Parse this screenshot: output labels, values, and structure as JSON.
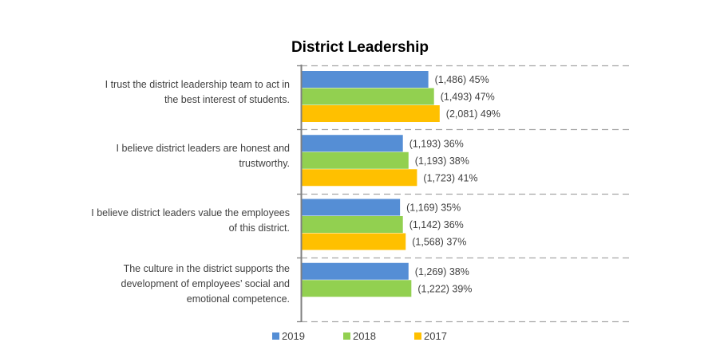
{
  "chart_data": {
    "type": "bar",
    "orientation": "horizontal",
    "title": "District Leadership",
    "xlabel": "",
    "ylabel": "",
    "xlim": [
      0,
      117
    ],
    "grid": true,
    "legend_position": "bottom",
    "categories": [
      "I trust the district leadership team to act in the best interest of students.",
      "I believe district leaders are honest and trustworthy.",
      "I believe district leaders value the employees of this district.",
      "The culture in the district supports the development of employees’ social and emotional competence."
    ],
    "category_lines": [
      [
        "I trust the district leadership team to act in",
        "the best interest of students."
      ],
      [
        "I believe district leaders are honest and",
        "trustworthy."
      ],
      [
        "I believe district leaders value the employees",
        "of this district."
      ],
      [
        "The culture in the district supports the",
        "development of employees’ social and",
        "emotional competence."
      ]
    ],
    "series": [
      {
        "name": "2019",
        "color": "#558ED5",
        "values": [
          45,
          36,
          35,
          38
        ],
        "counts": [
          "1,486",
          "1,193",
          "1,169",
          "1,269"
        ],
        "labels": [
          "(1,486) 45%",
          "(1,193) 36%",
          "(1,169) 35%",
          "(1,269) 38%"
        ]
      },
      {
        "name": "2018",
        "color": "#92D050",
        "values": [
          47,
          38,
          36,
          39
        ],
        "counts": [
          "1,493",
          "1,193",
          "1,142",
          "1,222"
        ],
        "labels": [
          "(1,493) 47%",
          "(1,193) 38%",
          "(1,142) 36%",
          "(1,222) 39%"
        ]
      },
      {
        "name": "2017",
        "color": "#FFC000",
        "values": [
          49,
          41,
          37,
          null
        ],
        "counts": [
          "2,081",
          "1,723",
          "1,568",
          null
        ],
        "labels": [
          "(2,081) 49%",
          "(1,723) 41%",
          "(1,568) 37%",
          null
        ]
      }
    ]
  }
}
